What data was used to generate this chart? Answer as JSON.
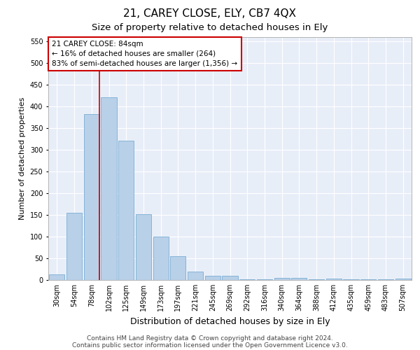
{
  "title1": "21, CAREY CLOSE, ELY, CB7 4QX",
  "title2": "Size of property relative to detached houses in Ely",
  "xlabel": "Distribution of detached houses by size in Ely",
  "ylabel": "Number of detached properties",
  "categories": [
    "30sqm",
    "54sqm",
    "78sqm",
    "102sqm",
    "125sqm",
    "149sqm",
    "173sqm",
    "197sqm",
    "221sqm",
    "245sqm",
    "269sqm",
    "292sqm",
    "316sqm",
    "340sqm",
    "364sqm",
    "388sqm",
    "412sqm",
    "435sqm",
    "459sqm",
    "483sqm",
    "507sqm"
  ],
  "values": [
    13,
    155,
    382,
    420,
    320,
    152,
    100,
    55,
    20,
    10,
    10,
    2,
    2,
    5,
    5,
    2,
    3,
    2,
    2,
    2,
    3
  ],
  "bar_color": "#b8d0e8",
  "bar_edge_color": "#7aadd4",
  "vline_index": 2,
  "vline_color": "#cc0000",
  "annotation_text": "21 CAREY CLOSE: 84sqm\n← 16% of detached houses are smaller (264)\n83% of semi-detached houses are larger (1,356) →",
  "annotation_box_facecolor": "#ffffff",
  "annotation_box_edgecolor": "#cc0000",
  "ylim": [
    0,
    560
  ],
  "yticks": [
    0,
    50,
    100,
    150,
    200,
    250,
    300,
    350,
    400,
    450,
    500,
    550
  ],
  "footnote1": "Contains HM Land Registry data © Crown copyright and database right 2024.",
  "footnote2": "Contains public sector information licensed under the Open Government Licence v3.0.",
  "plot_bg_color": "#e8eef8",
  "grid_color": "#ffffff",
  "title1_fontsize": 11,
  "title2_fontsize": 9.5,
  "xlabel_fontsize": 9,
  "ylabel_fontsize": 8,
  "tick_fontsize": 7,
  "annotation_fontsize": 7.5,
  "footnote_fontsize": 6.5
}
